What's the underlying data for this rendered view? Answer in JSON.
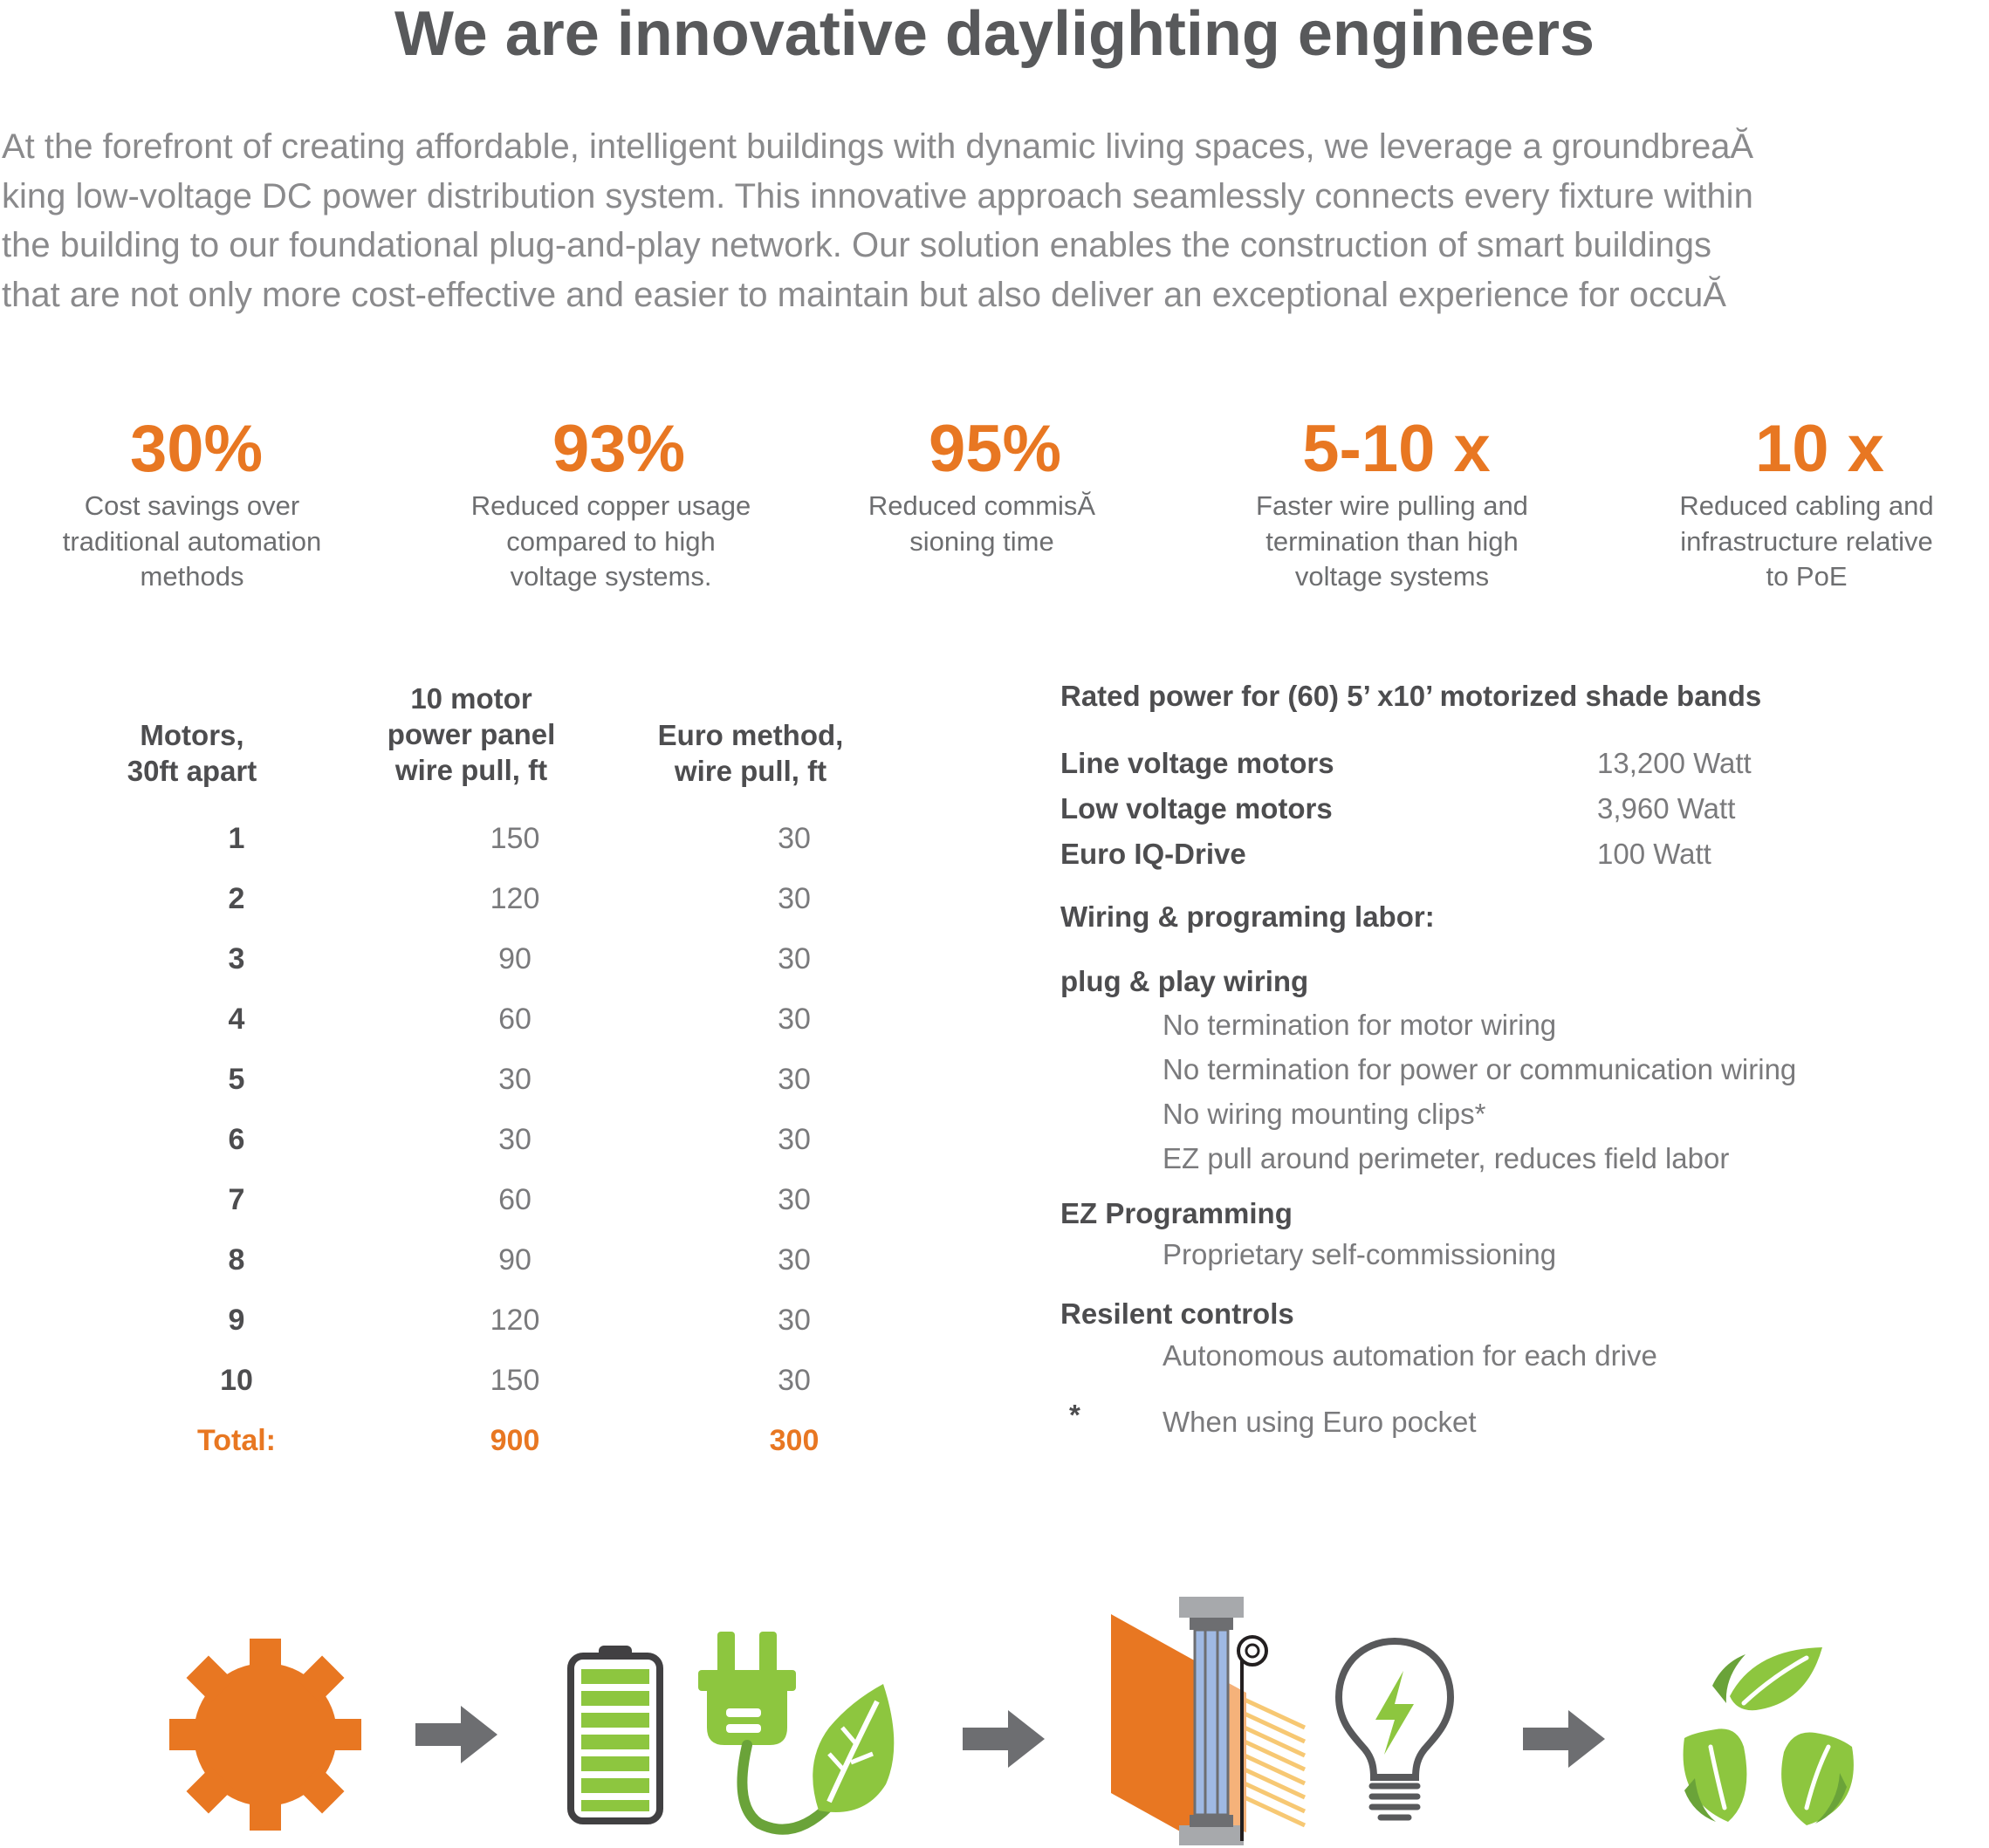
{
  "title": "We are innovative daylighting engineers",
  "intro_lines": [
    "At the forefront of creating affordable, intelligent buildings with dynamic living spaces, we leverage a groundbreaĂ",
    "king low-voltage DC power distribution system. This innovative approach seamlessly connects every fixture within",
    "the building to our foundational plug-and-play network. Our solution enables the construction of smart buildings",
    "that are not only more cost-effective and easier to maintain but also deliver an exceptional experience for occuĂ"
  ],
  "stats": [
    {
      "value": "30%",
      "desc": [
        "Cost savings over",
        "traditional automation",
        "methods"
      ]
    },
    {
      "value": "93%",
      "desc": [
        "Reduced copper usage",
        "compared to high",
        "voltage systems."
      ]
    },
    {
      "value": "95%",
      "desc": [
        "Reduced commisĂ",
        "sioning time"
      ]
    },
    {
      "value": "5-10 x",
      "desc": [
        "Faster wire pulling and",
        "termination than high",
        "voltage systems"
      ]
    },
    {
      "value": "10 x",
      "desc": [
        "Reduced cabling and",
        "infrastructure relative",
        "to PoE"
      ]
    }
  ],
  "table": {
    "headers": [
      [
        "Motors,",
        "30ft apart"
      ],
      [
        "10 motor",
        "power panel",
        "wire pull, ft"
      ],
      [
        "Euro method,",
        "wire pull, ft"
      ]
    ],
    "rows": [
      [
        "1",
        "150",
        "30"
      ],
      [
        "2",
        "120",
        "30"
      ],
      [
        "3",
        "90",
        "30"
      ],
      [
        "4",
        "60",
        "30"
      ],
      [
        "5",
        "30",
        "30"
      ],
      [
        "6",
        "30",
        "30"
      ],
      [
        "7",
        "60",
        "30"
      ],
      [
        "8",
        "90",
        "30"
      ],
      [
        "9",
        "120",
        "30"
      ],
      [
        "10",
        "150",
        "30"
      ]
    ],
    "total": [
      "Total:",
      "900",
      "300"
    ]
  },
  "rated": {
    "heading": "Rated power for (60) 5’ x10’ motorized shade bands",
    "items": [
      {
        "label": "Line voltage motors",
        "value": "13,200 Watt"
      },
      {
        "label": "Low voltage motors",
        "value": "3,960 Watt"
      },
      {
        "label": "Euro IQ-Drive",
        "value": "100 Watt"
      }
    ],
    "labor_heading": "Wiring & programing labor:",
    "plug_heading": "plug & play wiring",
    "plug_items": [
      "No termination for motor wiring",
      "No termination for power or communication wiring",
      "No wiring mounting clips*",
      "EZ pull around perimeter, reduces field labor"
    ],
    "ez_heading": "EZ Programming",
    "ez_item": "Proprietary self-commissioning",
    "resilient_heading": "Resilent controls",
    "resilient_item": "Autonomous automation for each drive",
    "footnote_mark": "*",
    "footnote_text": "When using Euro pocket"
  },
  "icons": [
    "gear-icon",
    "arrow-right-icon",
    "battery-icon",
    "plug-leaf-icon",
    "arrow-right-icon",
    "shade-window-icon",
    "light-bulb-icon",
    "arrow-right-icon",
    "recycle-leaves-icon"
  ],
  "colors": {
    "accent": "#e87722",
    "green": "#8dc63f",
    "dark_green": "#6aa339",
    "gray_text": "#58595b",
    "arrow": "#6d6e71"
  }
}
